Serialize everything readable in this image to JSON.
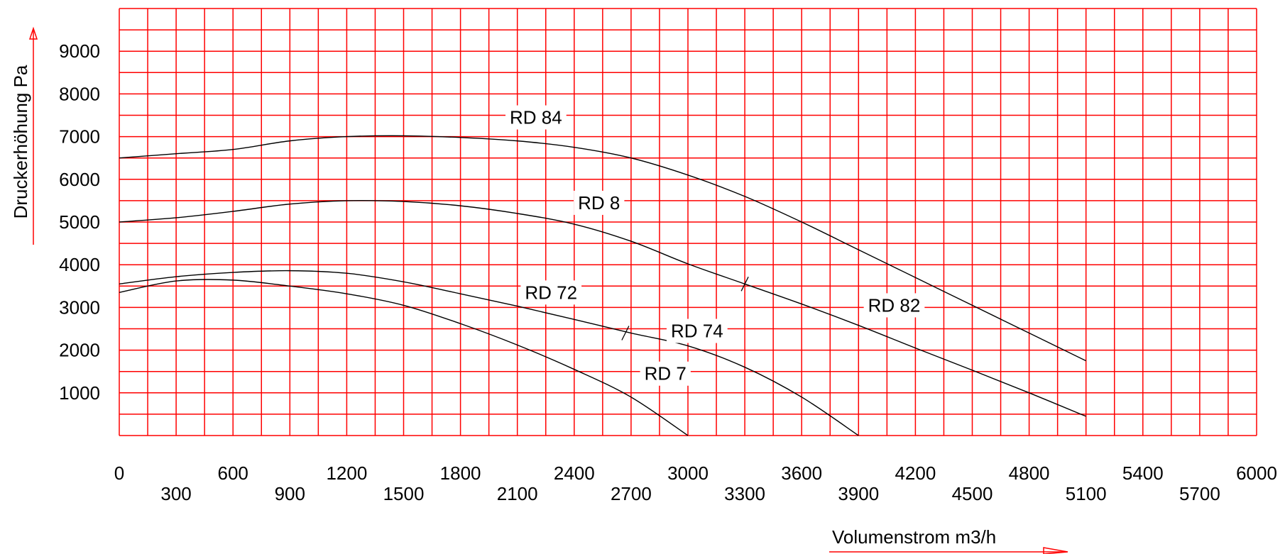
{
  "chart_data": {
    "type": "line",
    "xlabel": "Volumenstrom m3/h",
    "ylabel": "Druckerhöhung Pa",
    "xlim": [
      0,
      6000
    ],
    "ylim": [
      0,
      10000
    ],
    "grid": true,
    "grid_step": {
      "x": 150,
      "y": 500
    },
    "colors": {
      "grid": "#ff0000",
      "curves": "#000000",
      "axis_arrows": "#ff0000"
    },
    "x_ticks_upper": [
      "0",
      "600",
      "1200",
      "1800",
      "2400",
      "3000",
      "3600",
      "4200",
      "4800",
      "5400",
      "6000"
    ],
    "x_ticks_lower": [
      "300",
      "900",
      "1500",
      "2100",
      "2700",
      "3300",
      "3900",
      "4500",
      "5100",
      "5700"
    ],
    "y_ticks": [
      "1000",
      "2000",
      "3000",
      "4000",
      "5000",
      "6000",
      "7000",
      "8000",
      "9000"
    ],
    "series": [
      {
        "name": "RD 84",
        "label_at": [
          2060,
          7300
        ],
        "points": [
          [
            0,
            6500
          ],
          [
            300,
            6600
          ],
          [
            600,
            6700
          ],
          [
            900,
            6900
          ],
          [
            1200,
            7000
          ],
          [
            1500,
            7020
          ],
          [
            1800,
            6980
          ],
          [
            2100,
            6900
          ],
          [
            2400,
            6750
          ],
          [
            2700,
            6500
          ],
          [
            3000,
            6100
          ],
          [
            3300,
            5600
          ],
          [
            3600,
            5000
          ],
          [
            3900,
            4350
          ],
          [
            4200,
            3700
          ],
          [
            4500,
            3050
          ],
          [
            4800,
            2400
          ],
          [
            5100,
            1750
          ]
        ]
      },
      {
        "name": "RD 8",
        "label_at": [
          2420,
          5300
        ],
        "points": [
          [
            0,
            5000
          ],
          [
            300,
            5100
          ],
          [
            600,
            5250
          ],
          [
            900,
            5420
          ],
          [
            1200,
            5500
          ],
          [
            1500,
            5480
          ],
          [
            1800,
            5380
          ],
          [
            2100,
            5200
          ],
          [
            2400,
            4950
          ],
          [
            2700,
            4550
          ],
          [
            3000,
            4020
          ],
          [
            3300,
            3550
          ],
          [
            3600,
            3080
          ],
          [
            3900,
            2580
          ],
          [
            4200,
            2050
          ],
          [
            4500,
            1530
          ],
          [
            4800,
            1000
          ],
          [
            5100,
            450
          ]
        ]
      },
      {
        "name": "RD 82",
        "label_at": [
          3950,
          2900
        ],
        "points": []
      },
      {
        "name": "RD 72",
        "label_at": [
          2140,
          3200
        ],
        "points": [
          [
            0,
            3550
          ],
          [
            300,
            3720
          ],
          [
            600,
            3820
          ],
          [
            900,
            3860
          ],
          [
            1200,
            3800
          ],
          [
            1500,
            3600
          ],
          [
            1800,
            3320
          ],
          [
            2100,
            3030
          ],
          [
            2400,
            2720
          ],
          [
            2700,
            2400
          ],
          [
            3000,
            2100
          ],
          [
            3300,
            1600
          ],
          [
            3600,
            900
          ],
          [
            3900,
            0
          ]
        ]
      },
      {
        "name": "RD 74",
        "label_at": [
          2910,
          2300
        ],
        "points": []
      },
      {
        "name": "RD 7",
        "label_at": [
          2770,
          1300
        ],
        "points": [
          [
            0,
            3350
          ],
          [
            300,
            3620
          ],
          [
            600,
            3640
          ],
          [
            900,
            3500
          ],
          [
            1200,
            3320
          ],
          [
            1500,
            3050
          ],
          [
            1800,
            2620
          ],
          [
            2100,
            2120
          ],
          [
            2400,
            1550
          ],
          [
            2700,
            900
          ],
          [
            3000,
            0
          ]
        ]
      }
    ]
  }
}
